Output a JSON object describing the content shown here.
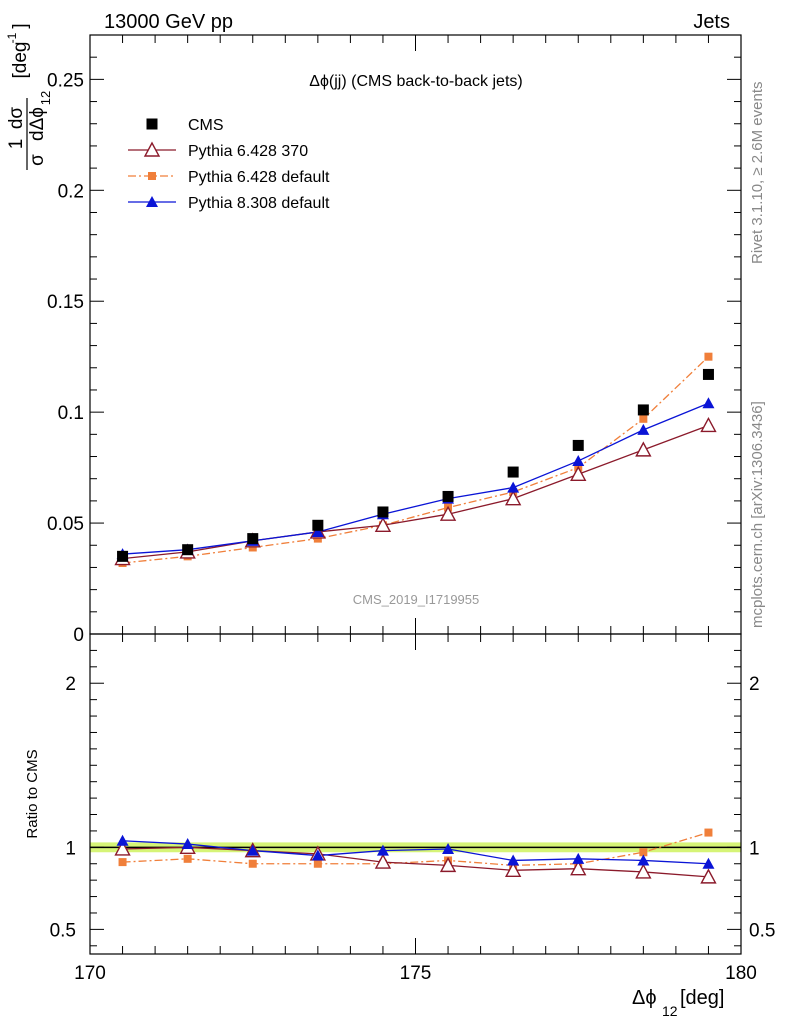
{
  "header": {
    "left": "13000 GeV pp",
    "right": "Jets"
  },
  "side_labels": {
    "rivet": "Rivet 3.1.10, ≥ 2.6M events",
    "mcplots": "mcplots.cern.ch [arXiv:1306.3436]"
  },
  "chart_data": [
    {
      "type": "scatter",
      "title": "Δϕ(jj) (CMS back-to-back jets)",
      "watermark": "CMS_2019_I1719955",
      "ylabel_parts": {
        "one": "1",
        "d_sigma": "dσ",
        "sigma": "σ",
        "d_dphi": "dΔϕ",
        "sub": "12",
        "unit": "[deg",
        "unit_exp": "-1",
        "unit_close": "]"
      },
      "xlim": [
        170,
        180
      ],
      "ylim": [
        0,
        0.27
      ],
      "yticks": [
        0,
        0.05,
        0.1,
        0.15,
        0.2,
        0.25
      ],
      "ytick_labels": [
        "0",
        "0.05",
        "0.1",
        "0.15",
        "0.2",
        "0.25"
      ],
      "legend_position": "top-left",
      "x": [
        170.5,
        171.5,
        172.5,
        173.5,
        174.5,
        175.5,
        176.5,
        177.5,
        178.5,
        179.5
      ],
      "series": [
        {
          "name": "CMS",
          "color": "#000000",
          "marker": "square",
          "line": "none",
          "values": [
            0.035,
            0.038,
            0.043,
            0.049,
            0.055,
            0.062,
            0.073,
            0.085,
            0.101,
            0.117
          ]
        },
        {
          "name": "Pythia 6.428 370",
          "color": "#8b1a2b",
          "marker": "open-triangle",
          "line": "solid",
          "values": [
            0.034,
            0.037,
            0.042,
            0.046,
            0.049,
            0.054,
            0.061,
            0.072,
            0.083,
            0.094
          ]
        },
        {
          "name": "Pythia 6.428 default",
          "color": "#f07f3a",
          "marker": "small-square",
          "line": "dashdot",
          "values": [
            0.032,
            0.035,
            0.039,
            0.043,
            0.049,
            0.057,
            0.064,
            0.075,
            0.097,
            0.125
          ]
        },
        {
          "name": "Pythia 8.308 default",
          "color": "#0a14d6",
          "marker": "triangle",
          "line": "solid",
          "values": [
            0.036,
            0.038,
            0.042,
            0.046,
            0.054,
            0.061,
            0.066,
            0.078,
            0.092,
            0.104
          ]
        }
      ]
    },
    {
      "type": "scatter",
      "ylabel": "Ratio to CMS",
      "xlabel_parts": {
        "main": "Δϕ",
        "sub": "12",
        "unit": " [deg]"
      },
      "xlim": [
        170,
        180
      ],
      "ylim": [
        0.35,
        2.3
      ],
      "yticks": [
        0.5,
        1,
        2
      ],
      "ytick_labels": [
        "0.5",
        "1",
        "2"
      ],
      "xticks": [
        170,
        175,
        180
      ],
      "xtick_labels": [
        "170",
        "175",
        "180"
      ],
      "band": {
        "lo": 0.97,
        "hi": 1.03,
        "color": "#c8f04a"
      },
      "x": [
        170.5,
        171.5,
        172.5,
        173.5,
        174.5,
        175.5,
        176.5,
        177.5,
        178.5,
        179.5
      ],
      "series": [
        {
          "name": "Pythia 6.428 370",
          "color": "#8b1a2b",
          "marker": "open-triangle",
          "line": "solid",
          "values": [
            0.99,
            1.0,
            0.98,
            0.96,
            0.91,
            0.89,
            0.86,
            0.87,
            0.85,
            0.82
          ]
        },
        {
          "name": "Pythia 6.428 default",
          "color": "#f07f3a",
          "marker": "small-square",
          "line": "dashdot",
          "values": [
            0.91,
            0.93,
            0.9,
            0.9,
            0.9,
            0.92,
            0.89,
            0.9,
            0.97,
            1.09
          ]
        },
        {
          "name": "Pythia 8.308 default",
          "color": "#0a14d6",
          "marker": "triangle",
          "line": "solid",
          "values": [
            1.04,
            1.02,
            0.98,
            0.95,
            0.98,
            0.99,
            0.92,
            0.93,
            0.92,
            0.9
          ]
        }
      ]
    }
  ]
}
